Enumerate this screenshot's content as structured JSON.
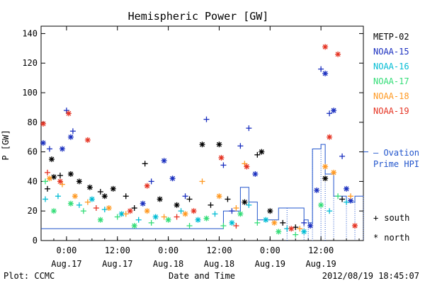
{
  "chart_data": {
    "type": "scatter",
    "title": "Hemispheric Power [GW]",
    "xlabel": "Date and Time",
    "ylabel": "P [GW]",
    "ylim": [
      0,
      145
    ],
    "yticks": [
      0,
      20,
      40,
      60,
      80,
      100,
      120,
      140
    ],
    "xlim": [
      "2012-08-16 18:00",
      "2012-08-19 22:00"
    ],
    "xticks": [
      {
        "t": "2012-08-17 00:00",
        "time": "0:00",
        "date": "Aug.17"
      },
      {
        "t": "2012-08-17 12:00",
        "time": "12:00",
        "date": "Aug.17"
      },
      {
        "t": "2012-08-18 00:00",
        "time": "0:00",
        "date": "Aug.18"
      },
      {
        "t": "2012-08-18 12:00",
        "time": "12:00",
        "date": "Aug.18"
      },
      {
        "t": "2012-08-19 00:00",
        "time": "0:00",
        "date": "Aug.19"
      },
      {
        "t": "2012-08-19 12:00",
        "time": "12:00",
        "date": "Aug.19"
      }
    ],
    "footer_left": "Plot: CCMC",
    "footer_right": "2012/08/19 18:45:07",
    "marker_legend": [
      {
        "symbol": "+",
        "label": "south"
      },
      {
        "symbol": "*",
        "label": "north"
      }
    ],
    "line_legend": {
      "symbol": "— Ovation",
      "label": "Prime HPI",
      "color": "#2255cc"
    },
    "series": [
      {
        "name": "METP-02",
        "color": "#000000",
        "points": [
          [
            "2012-08-16 19:30",
            35,
            "+"
          ],
          [
            "2012-08-16 20:30",
            55,
            "*"
          ],
          [
            "2012-08-16 21:00",
            43,
            "*"
          ],
          [
            "2012-08-16 22:30",
            44,
            "+"
          ],
          [
            "2012-08-17 01:00",
            45,
            "*"
          ],
          [
            "2012-08-17 03:00",
            40,
            "*"
          ],
          [
            "2012-08-17 05:30",
            36,
            "*"
          ],
          [
            "2012-08-17 08:00",
            33,
            "+"
          ],
          [
            "2012-08-17 11:00",
            35,
            "*"
          ],
          [
            "2012-08-17 14:00",
            30,
            "+"
          ],
          [
            "2012-08-17 18:30",
            52,
            "+"
          ],
          [
            "2012-08-17 22:00",
            28,
            "*"
          ],
          [
            "2012-08-18 02:00",
            24,
            "*"
          ],
          [
            "2012-08-18 05:00",
            28,
            "+"
          ],
          [
            "2012-08-18 08:00",
            65,
            "*"
          ],
          [
            "2012-08-18 12:00",
            65,
            "*"
          ],
          [
            "2012-08-18 14:00",
            28,
            "+"
          ],
          [
            "2012-08-18 18:00",
            26,
            "*"
          ],
          [
            "2012-08-18 21:00",
            58,
            "+"
          ],
          [
            "2012-08-18 22:00",
            60,
            "*"
          ],
          [
            "2012-08-19 00:00",
            20,
            "*"
          ],
          [
            "2012-08-19 06:00",
            9,
            "+"
          ],
          [
            "2012-08-19 13:00",
            42,
            "*"
          ],
          [
            "2012-08-19 17:00",
            28,
            "+"
          ],
          [
            "2012-08-17 09:00",
            30,
            "*"
          ],
          [
            "2012-08-17 16:00",
            22,
            "+"
          ],
          [
            "2012-08-18 10:00",
            24,
            "+"
          ],
          [
            "2012-08-19 03:00",
            12,
            "+"
          ]
        ]
      },
      {
        "name": "NOAA-15",
        "color": "#1a2fbf",
        "points": [
          [
            "2012-08-16 18:30",
            66,
            "*"
          ],
          [
            "2012-08-16 20:00",
            62,
            "+"
          ],
          [
            "2012-08-16 23:00",
            62,
            "*"
          ],
          [
            "2012-08-17 00:00",
            88,
            "+"
          ],
          [
            "2012-08-17 01:00",
            70,
            "*"
          ],
          [
            "2012-08-17 01:30",
            74,
            "+"
          ],
          [
            "2012-08-17 18:00",
            25,
            "*"
          ],
          [
            "2012-08-17 23:00",
            54,
            "*"
          ],
          [
            "2012-08-18 01:00",
            42,
            "*"
          ],
          [
            "2012-08-18 09:00",
            82,
            "+"
          ],
          [
            "2012-08-18 13:00",
            51,
            "+"
          ],
          [
            "2012-08-18 17:00",
            64,
            "+"
          ],
          [
            "2012-08-18 19:00",
            76,
            "+"
          ],
          [
            "2012-08-18 20:30",
            45,
            "*"
          ],
          [
            "2012-08-19 11:00",
            34,
            "*"
          ],
          [
            "2012-08-19 12:00",
            116,
            "+"
          ],
          [
            "2012-08-19 13:00",
            113,
            "*"
          ],
          [
            "2012-08-19 14:00",
            86,
            "+"
          ],
          [
            "2012-08-19 15:00",
            88,
            "*"
          ],
          [
            "2012-08-19 17:00",
            57,
            "+"
          ],
          [
            "2012-08-19 18:00",
            35,
            "*"
          ],
          [
            "2012-08-19 19:00",
            27,
            "*"
          ],
          [
            "2012-08-17 20:00",
            40,
            "+"
          ],
          [
            "2012-08-18 04:00",
            30,
            "+"
          ],
          [
            "2012-08-18 15:00",
            20,
            "+"
          ],
          [
            "2012-08-19 08:00",
            12,
            "+"
          ],
          [
            "2012-08-19 09:30",
            10,
            "*"
          ]
        ]
      },
      {
        "name": "NOAA-16",
        "color": "#00bcd4",
        "points": [
          [
            "2012-08-16 19:00",
            28,
            "+"
          ],
          [
            "2012-08-16 22:00",
            30,
            "+"
          ],
          [
            "2012-08-17 03:00",
            24,
            "+"
          ],
          [
            "2012-08-17 06:00",
            28,
            "*"
          ],
          [
            "2012-08-17 09:00",
            21,
            "+"
          ],
          [
            "2012-08-17 13:00",
            18,
            "*"
          ],
          [
            "2012-08-17 17:00",
            14,
            "+"
          ],
          [
            "2012-08-17 21:00",
            16,
            "*"
          ],
          [
            "2012-08-18 03:00",
            20,
            "+"
          ],
          [
            "2012-08-18 07:00",
            14,
            "*"
          ],
          [
            "2012-08-18 11:00",
            18,
            "+"
          ],
          [
            "2012-08-18 15:00",
            12,
            "*"
          ],
          [
            "2012-08-18 19:00",
            24,
            "+"
          ],
          [
            "2012-08-18 23:00",
            14,
            "*"
          ],
          [
            "2012-08-19 04:00",
            8,
            "+"
          ],
          [
            "2012-08-19 08:00",
            6,
            "*"
          ],
          [
            "2012-08-19 14:00",
            20,
            "+"
          ],
          [
            "2012-08-19 18:00",
            26,
            "+"
          ]
        ]
      },
      {
        "name": "NOAA-17",
        "color": "#33dd77",
        "points": [
          [
            "2012-08-16 19:00",
            40,
            "+"
          ],
          [
            "2012-08-16 21:00",
            20,
            "*"
          ],
          [
            "2012-08-17 01:00",
            25,
            "*"
          ],
          [
            "2012-08-17 04:00",
            20,
            "+"
          ],
          [
            "2012-08-17 08:00",
            14,
            "*"
          ],
          [
            "2012-08-17 12:00",
            16,
            "+"
          ],
          [
            "2012-08-17 16:00",
            10,
            "*"
          ],
          [
            "2012-08-17 20:00",
            12,
            "+"
          ],
          [
            "2012-08-18 00:00",
            14,
            "*"
          ],
          [
            "2012-08-18 05:00",
            10,
            "+"
          ],
          [
            "2012-08-18 09:00",
            15,
            "*"
          ],
          [
            "2012-08-18 13:00",
            10,
            "+"
          ],
          [
            "2012-08-18 17:00",
            18,
            "*"
          ],
          [
            "2012-08-18 21:00",
            12,
            "+"
          ],
          [
            "2012-08-19 02:00",
            6,
            "*"
          ],
          [
            "2012-08-19 06:00",
            4,
            "+"
          ],
          [
            "2012-08-19 12:00",
            24,
            "*"
          ],
          [
            "2012-08-19 16:00",
            30,
            "+"
          ]
        ]
      },
      {
        "name": "NOAA-18",
        "color": "#ff9922",
        "points": [
          [
            "2012-08-16 20:00",
            42,
            "*"
          ],
          [
            "2012-08-16 23:00",
            38,
            "+"
          ],
          [
            "2012-08-17 02:00",
            30,
            "*"
          ],
          [
            "2012-08-17 05:00",
            26,
            "+"
          ],
          [
            "2012-08-17 10:00",
            22,
            "*"
          ],
          [
            "2012-08-17 14:00",
            18,
            "+"
          ],
          [
            "2012-08-17 19:00",
            20,
            "*"
          ],
          [
            "2012-08-17 23:00",
            16,
            "+"
          ],
          [
            "2012-08-18 04:00",
            18,
            "*"
          ],
          [
            "2012-08-18 08:00",
            40,
            "+"
          ],
          [
            "2012-08-18 12:00",
            30,
            "*"
          ],
          [
            "2012-08-18 16:00",
            22,
            "+"
          ],
          [
            "2012-08-18 18:00",
            52,
            "+"
          ],
          [
            "2012-08-19 01:00",
            12,
            "*"
          ],
          [
            "2012-08-19 07:00",
            8,
            "+"
          ],
          [
            "2012-08-19 13:00",
            50,
            "*"
          ],
          [
            "2012-08-19 15:00",
            46,
            "*"
          ],
          [
            "2012-08-19 19:00",
            30,
            "+"
          ]
        ]
      },
      {
        "name": "NOAA-19",
        "color": "#e53322",
        "points": [
          [
            "2012-08-16 18:30",
            79,
            "*"
          ],
          [
            "2012-08-16 19:30",
            46,
            "+"
          ],
          [
            "2012-08-16 22:30",
            40,
            "*"
          ],
          [
            "2012-08-17 00:30",
            86,
            "*"
          ],
          [
            "2012-08-17 05:00",
            68,
            "*"
          ],
          [
            "2012-08-17 07:00",
            22,
            "+"
          ],
          [
            "2012-08-17 15:00",
            20,
            "*"
          ],
          [
            "2012-08-17 19:00",
            37,
            "*"
          ],
          [
            "2012-08-18 02:00",
            16,
            "+"
          ],
          [
            "2012-08-18 06:00",
            20,
            "*"
          ],
          [
            "2012-08-18 12:30",
            56,
            "*"
          ],
          [
            "2012-08-18 16:00",
            10,
            "+"
          ],
          [
            "2012-08-18 18:30",
            50,
            "*"
          ],
          [
            "2012-08-19 05:00",
            8,
            "*"
          ],
          [
            "2012-08-19 13:00",
            131,
            "*"
          ],
          [
            "2012-08-19 14:00",
            70,
            "*"
          ],
          [
            "2012-08-19 16:00",
            126,
            "*"
          ],
          [
            "2012-08-19 20:00",
            10,
            "*"
          ]
        ]
      }
    ],
    "ovation_line": {
      "color": "#2255cc",
      "points": [
        [
          "2012-08-16 18:00",
          8
        ],
        [
          "2012-08-18 12:00",
          8
        ],
        [
          "2012-08-18 13:00",
          20
        ],
        [
          "2012-08-18 17:00",
          36
        ],
        [
          "2012-08-18 18:00",
          36
        ],
        [
          "2012-08-18 19:00",
          26
        ],
        [
          "2012-08-18 21:00",
          14
        ],
        [
          "2012-08-19 01:00",
          14
        ],
        [
          "2012-08-19 02:00",
          22
        ],
        [
          "2012-08-19 04:00",
          22
        ],
        [
          "2012-08-19 08:00",
          14
        ],
        [
          "2012-08-19 09:00",
          12
        ],
        [
          "2012-08-19 10:00",
          62
        ],
        [
          "2012-08-19 12:00",
          65
        ],
        [
          "2012-08-19 13:00",
          45
        ],
        [
          "2012-08-19 15:00",
          30
        ],
        [
          "2012-08-19 18:00",
          26
        ],
        [
          "2012-08-19 20:00",
          30
        ],
        [
          "2012-08-19 22:00",
          30
        ]
      ]
    }
  }
}
